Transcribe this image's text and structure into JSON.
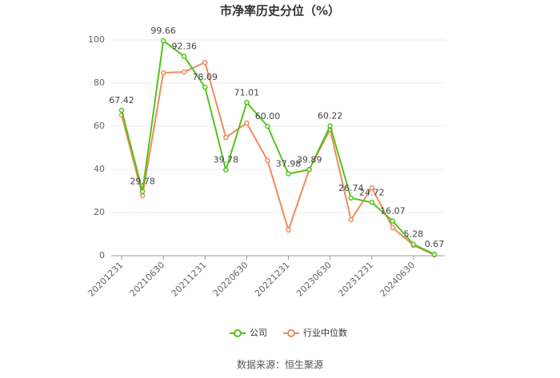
{
  "chart_data": {
    "type": "line",
    "title": "市净率历史分位（%）",
    "categories": [
      "20201231",
      null,
      "20210630",
      null,
      "20211231",
      null,
      "20220630",
      null,
      "20221231",
      null,
      "20230630",
      null,
      "20231231",
      null,
      "20240630",
      null
    ],
    "series": [
      {
        "name": "公司",
        "color": "#52c41a",
        "values": [
          67.42,
          29.78,
          99.66,
          92.36,
          78.09,
          39.78,
          71.01,
          60.0,
          37.98,
          39.89,
          60.22,
          26.74,
          24.72,
          16.07,
          5.28,
          0.67
        ],
        "value_labels": [
          "67.42",
          "29.78",
          "99.66",
          "92.36",
          "78.09",
          "39.78",
          "71.01",
          "60.00",
          "37.98",
          "39.89",
          "60.22",
          "26.74",
          "24.72",
          "16.07",
          "5.28",
          "0.67"
        ]
      },
      {
        "name": "行业中位数",
        "color": "#f08a5d",
        "values": [
          65.2,
          27.8,
          84.8,
          85.2,
          89.6,
          54.8,
          61.5,
          44.1,
          11.9,
          40.0,
          58.5,
          16.7,
          31.5,
          13.0,
          4.8,
          0.4
        ]
      }
    ],
    "ylim": [
      0,
      100
    ],
    "yticks": [
      0,
      20,
      40,
      60,
      80,
      100
    ],
    "grid": true,
    "source": "数据来源：恒生聚源"
  }
}
